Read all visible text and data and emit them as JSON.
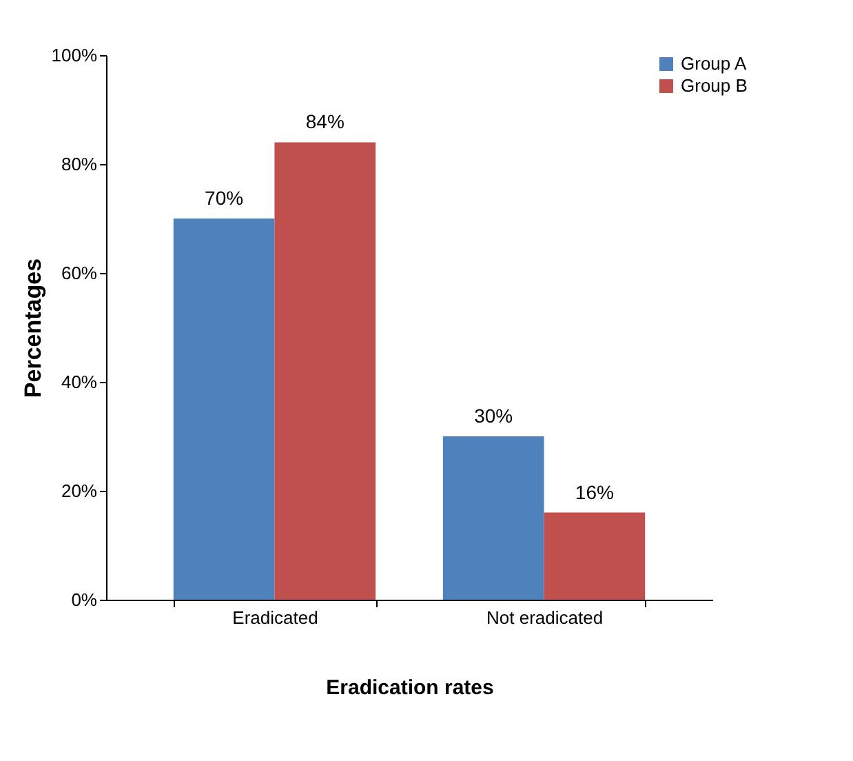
{
  "chart_data": {
    "type": "bar",
    "xlabel": "Eradication rates",
    "ylabel": "Percentages",
    "categories": [
      "Eradicated",
      "Not eradicated"
    ],
    "series": [
      {
        "name": "Group A",
        "color": "#4f81bd",
        "values": [
          70,
          30
        ],
        "value_labels": [
          "70%",
          "30%"
        ]
      },
      {
        "name": "Group B",
        "color": "#c0504d",
        "values": [
          84,
          16
        ],
        "value_labels": [
          "84%",
          "16%"
        ]
      }
    ],
    "ylim": [
      0,
      100
    ],
    "yticks": [
      {
        "value": 0,
        "label": "0%"
      },
      {
        "value": 20,
        "label": "20%"
      },
      {
        "value": 40,
        "label": "40%"
      },
      {
        "value": 60,
        "label": "60%"
      },
      {
        "value": 80,
        "label": "80%"
      },
      {
        "value": 100,
        "label": "100%"
      }
    ],
    "grid": false,
    "legend": "right"
  }
}
